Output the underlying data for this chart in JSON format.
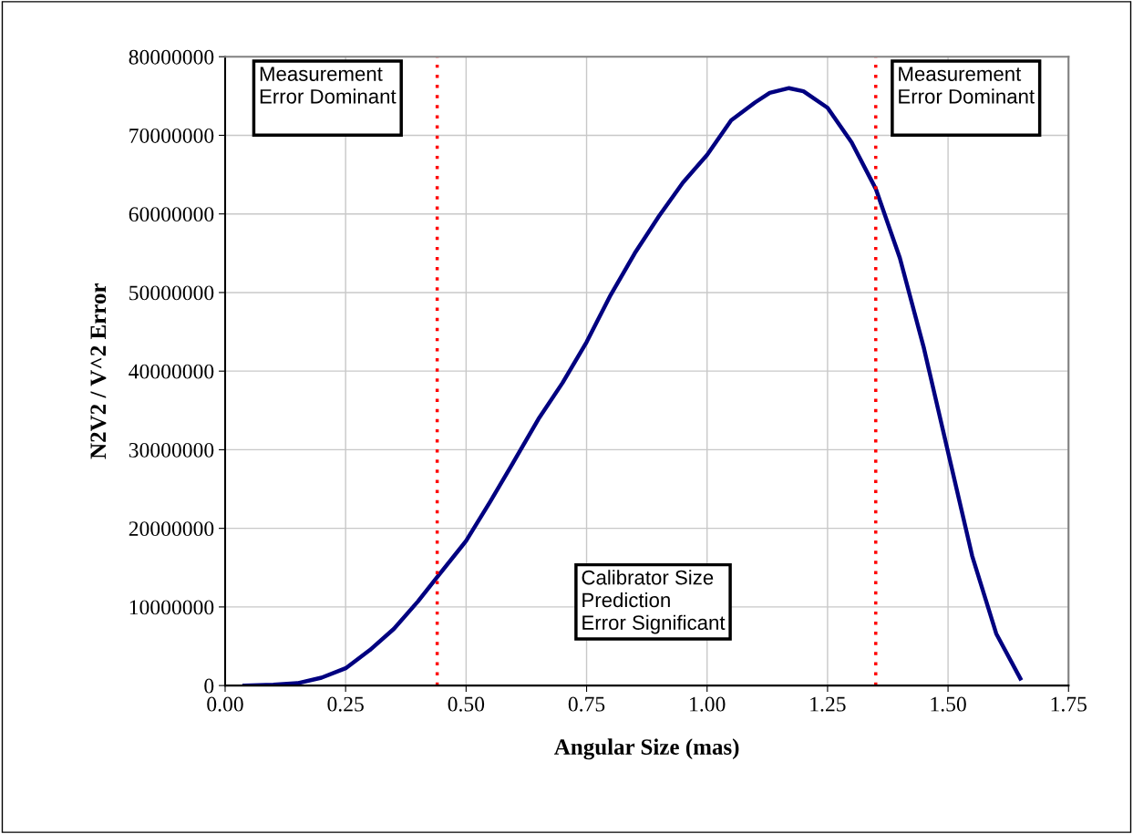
{
  "chart_data": {
    "type": "line",
    "xlabel": "Angular Size (mas)",
    "ylabel": "N2V2 / V^2 Error",
    "x": [
      0.04,
      0.1,
      0.15,
      0.2,
      0.25,
      0.3,
      0.35,
      0.4,
      0.44,
      0.5,
      0.55,
      0.6,
      0.65,
      0.7,
      0.75,
      0.8,
      0.85,
      0.9,
      0.95,
      1.0,
      1.05,
      1.1,
      1.13,
      1.17,
      1.2,
      1.25,
      1.3,
      1.35,
      1.4,
      1.45,
      1.5,
      1.55,
      1.6,
      1.65
    ],
    "series": [
      {
        "color": "#000080",
        "values": [
          0,
          100000,
          300000,
          1000000,
          2200000,
          4500000,
          7200000,
          10700000,
          13800000,
          18400000,
          23400000,
          28600000,
          33900000,
          38500000,
          43700000,
          49700000,
          55000000,
          59700000,
          64000000,
          67500000,
          71900000,
          74200000,
          75400000,
          76000000,
          75600000,
          73500000,
          69100000,
          63200000,
          54400000,
          42900000,
          29700000,
          16500000,
          6600000,
          900000
        ]
      }
    ],
    "xlim": [
      0,
      1.75
    ],
    "xticks": [
      {
        "value": 0,
        "label": "0.00"
      },
      {
        "value": 0.25,
        "label": "0.25"
      },
      {
        "value": 0.5,
        "label": "0.50"
      },
      {
        "value": 0.75,
        "label": "0.75"
      },
      {
        "value": 1.0,
        "label": "1.00"
      },
      {
        "value": 1.25,
        "label": "1.25"
      },
      {
        "value": 1.5,
        "label": "1.50"
      },
      {
        "value": 1.75,
        "label": "1.75"
      }
    ],
    "ylim": [
      0,
      80000000
    ],
    "yticks": [
      0,
      10000000,
      20000000,
      30000000,
      40000000,
      50000000,
      60000000,
      70000000,
      80000000
    ],
    "grid": true,
    "legend": false,
    "marker": "none",
    "line_style": "solid",
    "ref_lines": [
      {
        "axis": "x",
        "value": 0.44,
        "color": "#ff0000",
        "line_style": "dotted"
      },
      {
        "axis": "x",
        "value": 1.35,
        "color": "#ff0000",
        "line_style": "dotted"
      }
    ],
    "annotations": [
      "Measurement\nError Dominant",
      "Measurement\nError Dominant",
      "Calibrator Size\nPrediction\nError Significant"
    ]
  }
}
